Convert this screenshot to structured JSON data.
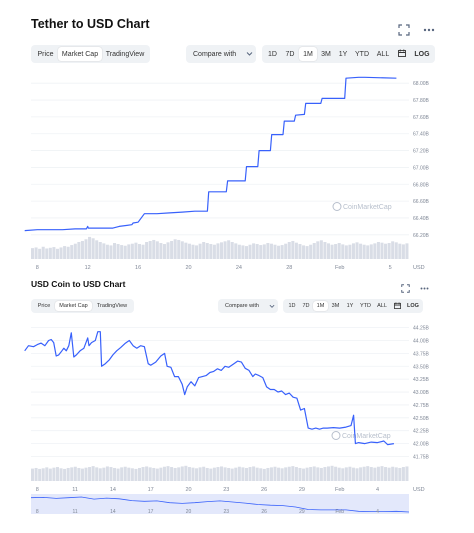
{
  "colors": {
    "line": "#3861fb",
    "volume": "#d9dde6",
    "grid": "#eff2f5",
    "nav_fill": "#e3e8fb"
  },
  "watermark": "CoinMarketCap",
  "panels": [
    {
      "title": "Tether to USD Chart",
      "view_tabs": [
        "Price",
        "Market Cap",
        "TradingView"
      ],
      "active_view": "Market Cap",
      "compare_label": "Compare with",
      "ranges": [
        "1D",
        "7D",
        "1M",
        "3M",
        "1Y",
        "YTD",
        "ALL"
      ],
      "active_range": "1M",
      "log_label": "LOG",
      "x_unit": "USD",
      "icons": [
        "fullscreen-icon",
        "more-icon",
        "calendar-icon",
        "chevron-down-icon"
      ]
    },
    {
      "title": "USD Coin to USD Chart",
      "view_tabs": [
        "Price",
        "Market Cap",
        "TradingView"
      ],
      "active_view": "Market Cap",
      "compare_label": "Compare with",
      "ranges": [
        "1D",
        "7D",
        "1M",
        "3M",
        "1Y",
        "YTD",
        "ALL"
      ],
      "active_range": "1M",
      "log_label": "LOG",
      "x_unit": "USD",
      "icons": [
        "fullscreen-icon",
        "more-icon",
        "calendar-icon",
        "chevron-down-icon"
      ]
    }
  ],
  "chart_data": [
    {
      "type": "line",
      "title": "Tether to USD Chart",
      "y_ticks": [
        "68.00B",
        "67.80B",
        "67.60B",
        "67.40B",
        "67.20B",
        "67.00B",
        "66.80B",
        "66.60B",
        "66.40B",
        "66.20B"
      ],
      "ylim": [
        66.15,
        68.05
      ],
      "x_ticks": [
        "8",
        "12",
        "16",
        "20",
        "24",
        "28",
        "Feb",
        "5"
      ],
      "x_tick_pos": [
        1.0,
        5.0,
        9.0,
        13.0,
        17.0,
        21.0,
        25.0,
        29.0
      ],
      "xlim": [
        0.5,
        30.5
      ],
      "series": [
        {
          "values": [
            [
              0.0,
              66.25
            ],
            [
              1.0,
              66.26
            ],
            [
              2.0,
              66.26
            ],
            [
              3.0,
              66.26
            ],
            [
              4.0,
              66.27
            ],
            [
              4.9,
              66.27
            ],
            [
              5.0,
              66.3
            ],
            [
              5.05,
              66.28
            ],
            [
              6.0,
              66.28
            ],
            [
              7.0,
              66.28
            ],
            [
              7.5,
              66.3
            ],
            [
              8.5,
              66.32
            ],
            [
              8.6,
              66.34
            ],
            [
              9.0,
              66.35
            ],
            [
              9.5,
              66.45
            ],
            [
              10.5,
              66.45
            ],
            [
              11.5,
              66.46
            ],
            [
              12.5,
              66.47
            ],
            [
              13.5,
              66.48
            ],
            [
              14.5,
              66.48
            ],
            [
              14.6,
              66.71
            ],
            [
              16.0,
              66.71
            ],
            [
              16.1,
              66.84
            ],
            [
              17.5,
              66.84
            ],
            [
              17.6,
              67.01
            ],
            [
              18.5,
              67.01
            ],
            [
              18.6,
              67.2
            ],
            [
              19.5,
              67.2
            ],
            [
              19.6,
              67.39
            ],
            [
              20.5,
              67.39
            ],
            [
              20.6,
              67.55
            ],
            [
              21.4,
              67.55
            ],
            [
              21.5,
              67.62
            ],
            [
              22.2,
              67.63
            ],
            [
              22.3,
              67.76
            ],
            [
              23.5,
              67.76
            ],
            [
              23.6,
              67.82
            ],
            [
              25.4,
              67.82
            ],
            [
              25.5,
              68.06
            ],
            [
              26.5,
              68.07
            ],
            [
              27.0,
              68.07
            ],
            [
              29.5,
              68.06
            ]
          ]
        }
      ],
      "volume": [
        0.32,
        0.34,
        0.3,
        0.36,
        0.31,
        0.33,
        0.35,
        0.3,
        0.34,
        0.38,
        0.36,
        0.41,
        0.45,
        0.5,
        0.53,
        0.58,
        0.65,
        0.61,
        0.55,
        0.5,
        0.46,
        0.42,
        0.4,
        0.47,
        0.44,
        0.41,
        0.39,
        0.43,
        0.45,
        0.48,
        0.44,
        0.42,
        0.5,
        0.53,
        0.56,
        0.52,
        0.47,
        0.44,
        0.49,
        0.53,
        0.58,
        0.56,
        0.52,
        0.48,
        0.45,
        0.42,
        0.4,
        0.45,
        0.5,
        0.47,
        0.44,
        0.42,
        0.46,
        0.49,
        0.52,
        0.55,
        0.5,
        0.46,
        0.42,
        0.4,
        0.38,
        0.42,
        0.46,
        0.44,
        0.41,
        0.43,
        0.47,
        0.45,
        0.42,
        0.39,
        0.41,
        0.45,
        0.5,
        0.53,
        0.48,
        0.44,
        0.4,
        0.38,
        0.42,
        0.47,
        0.52,
        0.55,
        0.5,
        0.46,
        0.42,
        0.44,
        0.47,
        0.43,
        0.4,
        0.42,
        0.46,
        0.49,
        0.45,
        0.42,
        0.4,
        0.43,
        0.46,
        0.5,
        0.48,
        0.45,
        0.47,
        0.52,
        0.49,
        0.45,
        0.43,
        0.46
      ]
    },
    {
      "type": "line",
      "title": "USD Coin to USD Chart",
      "y_ticks": [
        "44.25B",
        "44.00B",
        "43.75B",
        "43.50B",
        "43.25B",
        "43.00B",
        "42.75B",
        "42.50B",
        "42.25B",
        "42.00B",
        "41.75B"
      ],
      "ylim": [
        41.74,
        44.32
      ],
      "x_ticks": [
        "8",
        "11",
        "14",
        "17",
        "20",
        "23",
        "26",
        "29",
        "Feb",
        "4"
      ],
      "x_tick_pos": [
        1.0,
        4.0,
        7.0,
        10.0,
        13.0,
        16.0,
        19.0,
        22.0,
        25.0,
        28.0
      ],
      "xlim": [
        0.5,
        30.5
      ],
      "series": [
        {
          "values": [
            [
              0.0,
              43.8
            ],
            [
              0.3,
              43.9
            ],
            [
              0.7,
              43.88
            ],
            [
              1.0,
              43.92
            ],
            [
              1.3,
              43.95
            ],
            [
              1.6,
              43.9
            ],
            [
              1.9,
              44.0
            ],
            [
              2.1,
              44.02
            ],
            [
              2.3,
              43.96
            ],
            [
              2.5,
              43.7
            ],
            [
              2.7,
              43.72
            ],
            [
              2.9,
              43.78
            ],
            [
              3.1,
              43.85
            ],
            [
              3.3,
              43.8
            ],
            [
              3.5,
              43.9
            ],
            [
              3.7,
              44.15
            ],
            [
              3.9,
              43.68
            ],
            [
              4.1,
              43.72
            ],
            [
              4.4,
              43.8
            ],
            [
              4.7,
              43.85
            ],
            [
              5.0,
              44.05
            ],
            [
              5.1,
              43.9
            ],
            [
              5.3,
              43.96
            ],
            [
              5.6,
              44.0
            ],
            [
              5.8,
              44.17
            ],
            [
              6.0,
              44.17
            ],
            [
              6.1,
              43.5
            ],
            [
              6.4,
              43.55
            ],
            [
              6.7,
              43.62
            ],
            [
              7.0,
              43.72
            ],
            [
              7.3,
              43.8
            ],
            [
              7.6,
              43.86
            ],
            [
              8.0,
              43.95
            ],
            [
              8.3,
              44.0
            ],
            [
              8.6,
              43.9
            ],
            [
              8.9,
              43.85
            ],
            [
              9.2,
              43.9
            ],
            [
              9.5,
              43.88
            ],
            [
              9.8,
              43.55
            ],
            [
              10.0,
              43.52
            ],
            [
              10.4,
              43.58
            ],
            [
              10.8,
              43.7
            ],
            [
              11.1,
              43.75
            ],
            [
              11.3,
              43.5
            ],
            [
              11.6,
              43.48
            ],
            [
              11.9,
              43.3
            ],
            [
              12.2,
              43.3
            ],
            [
              12.5,
              43.15
            ],
            [
              12.7,
              42.95
            ],
            [
              12.9,
              43.1
            ],
            [
              13.2,
              43.2
            ],
            [
              13.5,
              43.12
            ],
            [
              13.8,
              43.28
            ],
            [
              14.1,
              43.3
            ],
            [
              14.4,
              43.32
            ],
            [
              14.7,
              43.38
            ],
            [
              15.0,
              43.4
            ],
            [
              15.3,
              43.45
            ],
            [
              15.6,
              43.42
            ],
            [
              15.9,
              43.5
            ],
            [
              16.2,
              43.48
            ],
            [
              16.6,
              43.55
            ],
            [
              16.9,
              43.6
            ],
            [
              17.2,
              43.58
            ],
            [
              17.5,
              43.46
            ],
            [
              17.8,
              43.42
            ],
            [
              18.1,
              43.3
            ],
            [
              18.3,
              43.35
            ],
            [
              18.6,
              43.32
            ],
            [
              18.9,
              43.28
            ],
            [
              19.2,
              43.1
            ],
            [
              19.5,
              43.05
            ],
            [
              19.8,
              43.05
            ],
            [
              20.1,
              43.0
            ],
            [
              20.4,
              43.02
            ],
            [
              20.7,
              42.95
            ],
            [
              21.0,
              42.98
            ],
            [
              21.3,
              42.9
            ],
            [
              21.6,
              42.88
            ],
            [
              21.9,
              42.65
            ],
            [
              22.2,
              42.68
            ],
            [
              22.5,
              42.3
            ],
            [
              22.8,
              42.28
            ],
            [
              23.1,
              42.3
            ],
            [
              23.4,
              42.28
            ],
            [
              23.7,
              42.3
            ],
            [
              24.0,
              42.3
            ],
            [
              24.5,
              42.31
            ],
            [
              25.0,
              42.3
            ],
            [
              25.5,
              42.32
            ],
            [
              25.9,
              42.35
            ],
            [
              26.1,
              42.55
            ],
            [
              26.25,
              42.0
            ],
            [
              26.5,
              42.02
            ],
            [
              27.0,
              42.0
            ],
            [
              27.5,
              42.03
            ],
            [
              28.0,
              42.02
            ],
            [
              28.5,
              42.05
            ],
            [
              28.8,
              41.98
            ],
            [
              29.3,
              42.0
            ]
          ]
        }
      ],
      "volume": [
        0.4,
        0.42,
        0.39,
        0.41,
        0.44,
        0.4,
        0.43,
        0.45,
        0.41,
        0.39,
        0.42,
        0.44,
        0.46,
        0.42,
        0.4,
        0.43,
        0.45,
        0.48,
        0.44,
        0.41,
        0.43,
        0.47,
        0.45,
        0.42,
        0.4,
        0.44,
        0.46,
        0.43,
        0.41,
        0.39,
        0.42,
        0.45,
        0.47,
        0.44,
        0.42,
        0.4,
        0.43,
        0.46,
        0.48,
        0.45,
        0.42,
        0.44,
        0.47,
        0.49,
        0.45,
        0.43,
        0.41,
        0.44,
        0.46,
        0.42,
        0.4,
        0.43,
        0.45,
        0.47,
        0.44,
        0.42,
        0.4,
        0.43,
        0.46,
        0.44,
        0.42,
        0.45,
        0.47,
        0.43,
        0.41,
        0.39,
        0.42,
        0.44,
        0.46,
        0.43,
        0.41,
        0.44,
        0.46,
        0.48,
        0.45,
        0.42,
        0.4,
        0.43,
        0.45,
        0.47,
        0.44,
        0.42,
        0.45,
        0.47,
        0.49,
        0.46,
        0.43,
        0.41,
        0.44,
        0.46,
        0.43,
        0.41,
        0.44,
        0.46,
        0.48,
        0.45,
        0.43,
        0.46,
        0.48,
        0.45,
        0.43,
        0.46,
        0.44,
        0.42,
        0.45,
        0.47
      ],
      "navigator": [
        44.0,
        44.05,
        43.9,
        44.0,
        44.1,
        43.8,
        43.95,
        43.85,
        43.6,
        43.5,
        43.55,
        43.3,
        43.2,
        43.3,
        43.45,
        43.55,
        43.4,
        43.25,
        43.05,
        42.95,
        42.9,
        42.7,
        42.35,
        42.3,
        42.3,
        42.3,
        42.1,
        42.05,
        42.05,
        42.1,
        42.0
      ]
    }
  ]
}
